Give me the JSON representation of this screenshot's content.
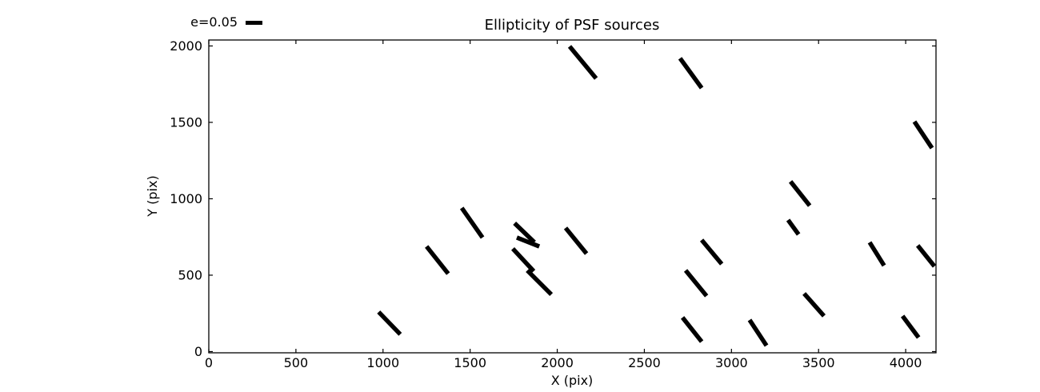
{
  "figure": {
    "background_color": "#ffffff",
    "line_color": "#000000"
  },
  "chart_data": {
    "type": "scatter",
    "subtype": "ellipticity-whisker-quiver",
    "title": "Ellipticity of PSF sources",
    "xlabel": "X (pix)",
    "ylabel": "Y (pix)",
    "xlim": [
      0,
      4174
    ],
    "ylim": [
      -8,
      2039
    ],
    "xticks": [
      0,
      500,
      1000,
      1500,
      2000,
      2500,
      3000,
      3500,
      4000
    ],
    "yticks": [
      0,
      500,
      1000,
      1500,
      2000
    ],
    "grid": false,
    "legend_label": "e=0.05",
    "legend_position": "above-axes-left",
    "whisker_color": "#000000",
    "segments": [
      [
        975,
        259,
        1099,
        113
      ],
      [
        1250,
        688,
        1374,
        510
      ],
      [
        1452,
        940,
        1571,
        746
      ],
      [
        1755,
        840,
        1869,
        715
      ],
      [
        1768,
        746,
        1897,
        688
      ],
      [
        1745,
        673,
        1865,
        526
      ],
      [
        1828,
        531,
        1966,
        374
      ],
      [
        2048,
        809,
        2168,
        641
      ],
      [
        2071,
        1997,
        2223,
        1788
      ],
      [
        2705,
        1919,
        2829,
        1725
      ],
      [
        2829,
        730,
        2944,
        573
      ],
      [
        2737,
        531,
        2857,
        364
      ],
      [
        2719,
        223,
        2829,
        65
      ],
      [
        3104,
        207,
        3201,
        39
      ],
      [
        3339,
        1113,
        3449,
        955
      ],
      [
        3325,
        861,
        3385,
        767
      ],
      [
        3417,
        380,
        3531,
        233
      ],
      [
        3793,
        715,
        3876,
        563
      ],
      [
        4050,
        1505,
        4151,
        1332
      ],
      [
        4069,
        694,
        4165,
        558
      ],
      [
        3982,
        233,
        4074,
        92
      ]
    ]
  }
}
